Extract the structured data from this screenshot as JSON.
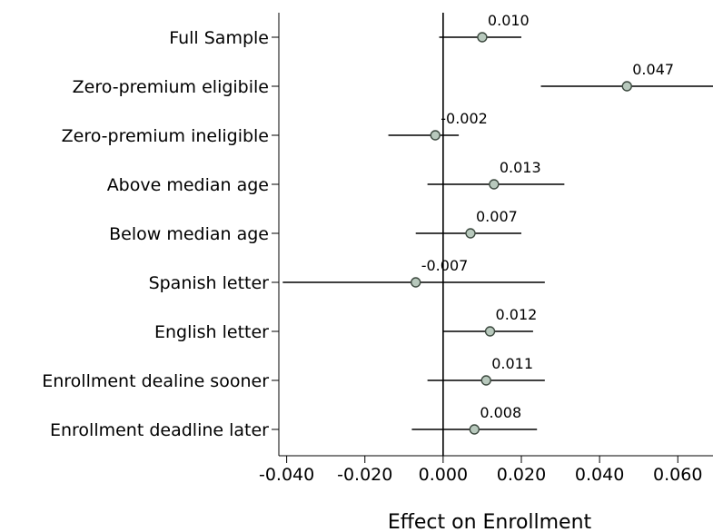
{
  "chart_data": {
    "type": "scatter",
    "subtype": "coefficient-plot-with-confidence-intervals",
    "title": "",
    "xlabel": "Effect on Enrollment",
    "ylabel": "",
    "xlim": [
      -0.042,
      0.069
    ],
    "xticks": [
      -0.04,
      -0.02,
      0.0,
      0.02,
      0.04,
      0.06
    ],
    "xtick_labels": [
      "-0.040",
      "-0.020",
      "0.000",
      "0.020",
      "0.040",
      "0.060"
    ],
    "reference_line_x": 0.0,
    "grid": false,
    "marker_color": "#b8c9bd",
    "categories": [
      "Full Sample",
      "Zero-premium eligibile",
      "Zero-premium ineligible",
      "Above median age",
      "Below median age",
      "Spanish letter",
      "English letter",
      "Enrollment dealine sooner",
      "Enrollment deadline later"
    ],
    "estimates": [
      0.01,
      0.047,
      -0.002,
      0.013,
      0.007,
      -0.007,
      0.012,
      0.011,
      0.008
    ],
    "estimate_labels": [
      "0.010",
      "0.047",
      "-0.002",
      "0.013",
      "0.007",
      "-0.007",
      "0.012",
      "0.011",
      "0.008"
    ],
    "ci_low": [
      -0.001,
      0.025,
      -0.014,
      -0.004,
      -0.007,
      -0.041,
      0.0,
      -0.004,
      -0.008
    ],
    "ci_high": [
      0.02,
      0.069,
      0.004,
      0.031,
      0.02,
      0.026,
      0.023,
      0.026,
      0.024
    ]
  }
}
